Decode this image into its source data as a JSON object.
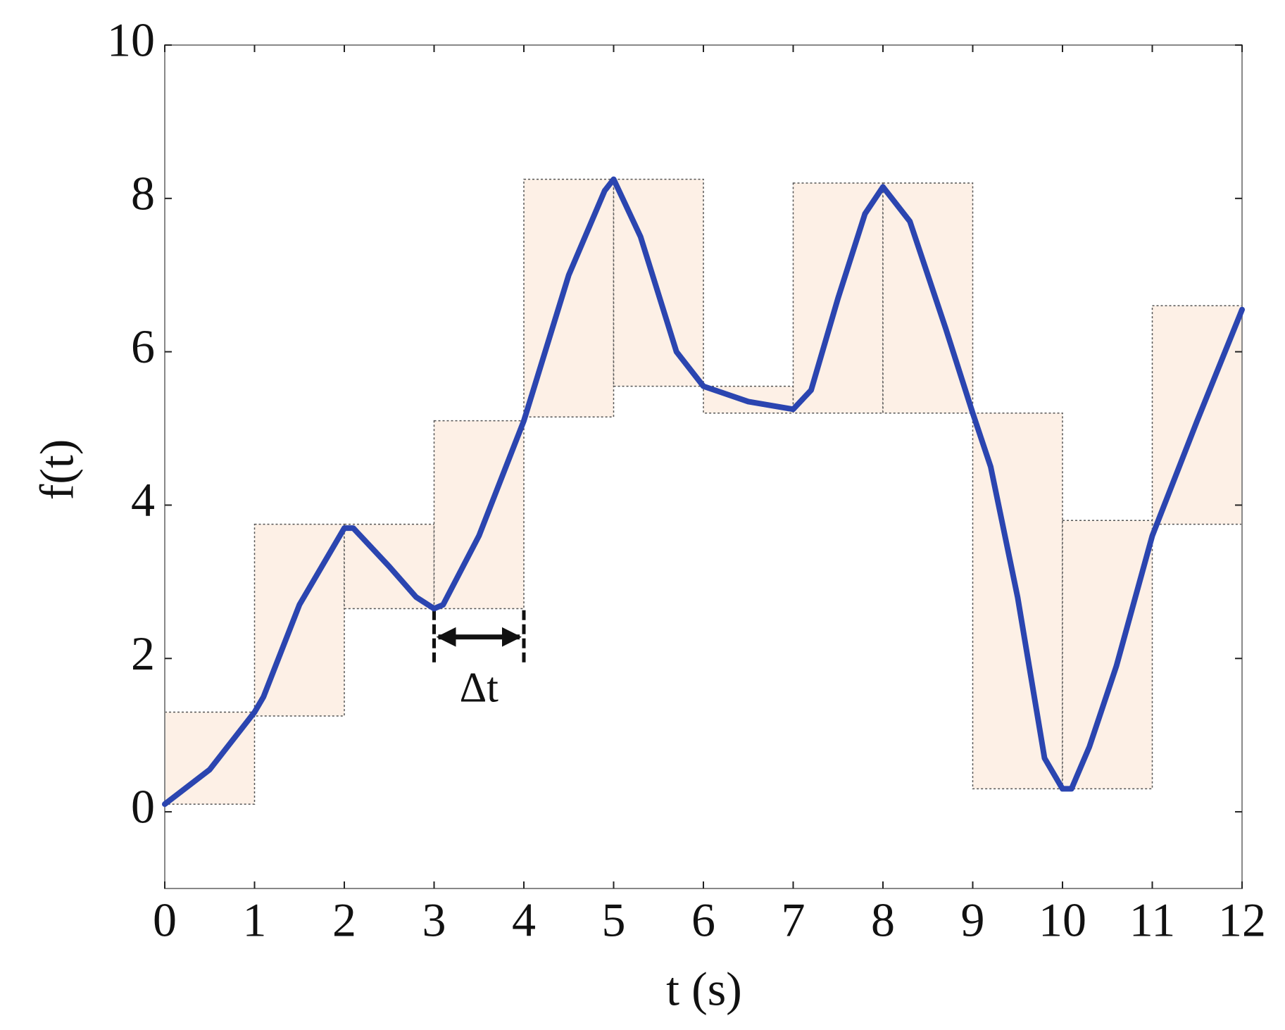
{
  "chart_data": {
    "type": "line",
    "x_label": "t (s)",
    "y_label": "f(t)",
    "xlim": [
      0,
      12
    ],
    "ylim": [
      -1,
      10
    ],
    "xticks": [
      0,
      1,
      2,
      3,
      4,
      5,
      6,
      7,
      8,
      9,
      10,
      11,
      12
    ],
    "yticks": [
      0,
      2,
      4,
      6,
      8,
      10
    ],
    "series": [
      {
        "color": "#2b45b0",
        "x": [
          0,
          0.5,
          1,
          1.1,
          1.5,
          2,
          2.1,
          2.5,
          2.8,
          3,
          3.1,
          3.5,
          4,
          4.5,
          4.9,
          5,
          5.3,
          5.7,
          6,
          6.5,
          7,
          7.2,
          7.5,
          7.8,
          8,
          8.3,
          8.7,
          9,
          9.2,
          9.5,
          9.8,
          10,
          10.1,
          10.3,
          10.6,
          11,
          11.5,
          12
        ],
        "values": [
          0.1,
          0.55,
          1.3,
          1.5,
          2.7,
          3.7,
          3.7,
          3.2,
          2.8,
          2.65,
          2.7,
          3.6,
          5.1,
          7.0,
          8.1,
          8.25,
          7.5,
          6.0,
          5.55,
          5.35,
          5.25,
          5.5,
          6.7,
          7.8,
          8.15,
          7.7,
          6.3,
          5.2,
          4.5,
          2.8,
          0.7,
          0.3,
          0.3,
          0.85,
          1.9,
          3.6,
          5.1,
          6.55
        ]
      }
    ],
    "boxes": {
      "color": "#fdf0e6",
      "edges": [
        0,
        1,
        2,
        3,
        4,
        5,
        6,
        7,
        8,
        9,
        10,
        11,
        12
      ],
      "low": [
        0.1,
        1.25,
        2.65,
        2.65,
        5.15,
        5.55,
        5.2,
        5.2,
        5.2,
        0.3,
        0.3,
        3.75
      ],
      "high": [
        1.3,
        3.75,
        3.75,
        5.1,
        8.25,
        8.25,
        5.55,
        8.2,
        8.2,
        5.2,
        3.8,
        6.6
      ]
    },
    "annotation": {
      "text": "Δt",
      "y": 2.28,
      "from": 3,
      "to": 4
    }
  }
}
